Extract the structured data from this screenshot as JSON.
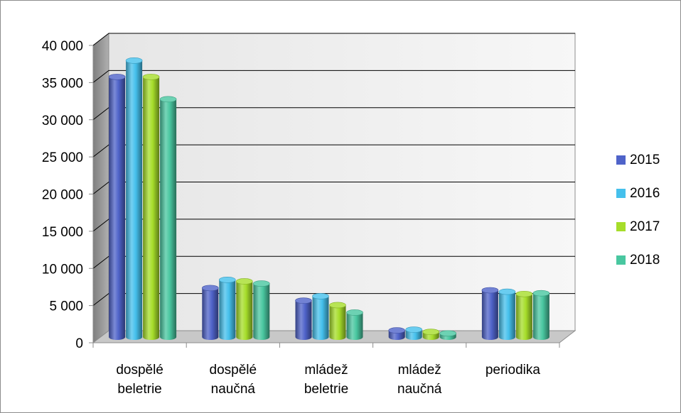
{
  "chart_data": {
    "type": "bar",
    "title": "",
    "xlabel": "",
    "ylabel": "",
    "ylim": [
      0,
      40000
    ],
    "y_ticks": [
      0,
      5000,
      10000,
      15000,
      20000,
      25000,
      30000,
      35000,
      40000
    ],
    "y_tick_labels": [
      "0",
      "5 000",
      "10 000",
      "15 000",
      "20 000",
      "25 000",
      "30 000",
      "35 000",
      "40 000"
    ],
    "grid": true,
    "style": "3d-cylinder",
    "legend_position": "right",
    "categories": [
      [
        "dospělé",
        "beletrie"
      ],
      [
        "dospělé",
        "naučná"
      ],
      [
        "mládež",
        "beletrie"
      ],
      [
        "mládež",
        "naučná"
      ],
      [
        "periodika"
      ]
    ],
    "series": [
      {
        "name": "2015",
        "color": "#4f63c9",
        "values": [
          35000,
          6600,
          4900,
          900,
          6300
        ]
      },
      {
        "name": "2016",
        "color": "#45c0ec",
        "values": [
          37200,
          7700,
          5500,
          1000,
          6100
        ]
      },
      {
        "name": "2017",
        "color": "#a6dd2a",
        "values": [
          35000,
          7500,
          4300,
          700,
          5800
        ]
      },
      {
        "name": "2018",
        "color": "#49c7a0",
        "values": [
          32000,
          7200,
          3300,
          500,
          5900
        ]
      }
    ]
  }
}
